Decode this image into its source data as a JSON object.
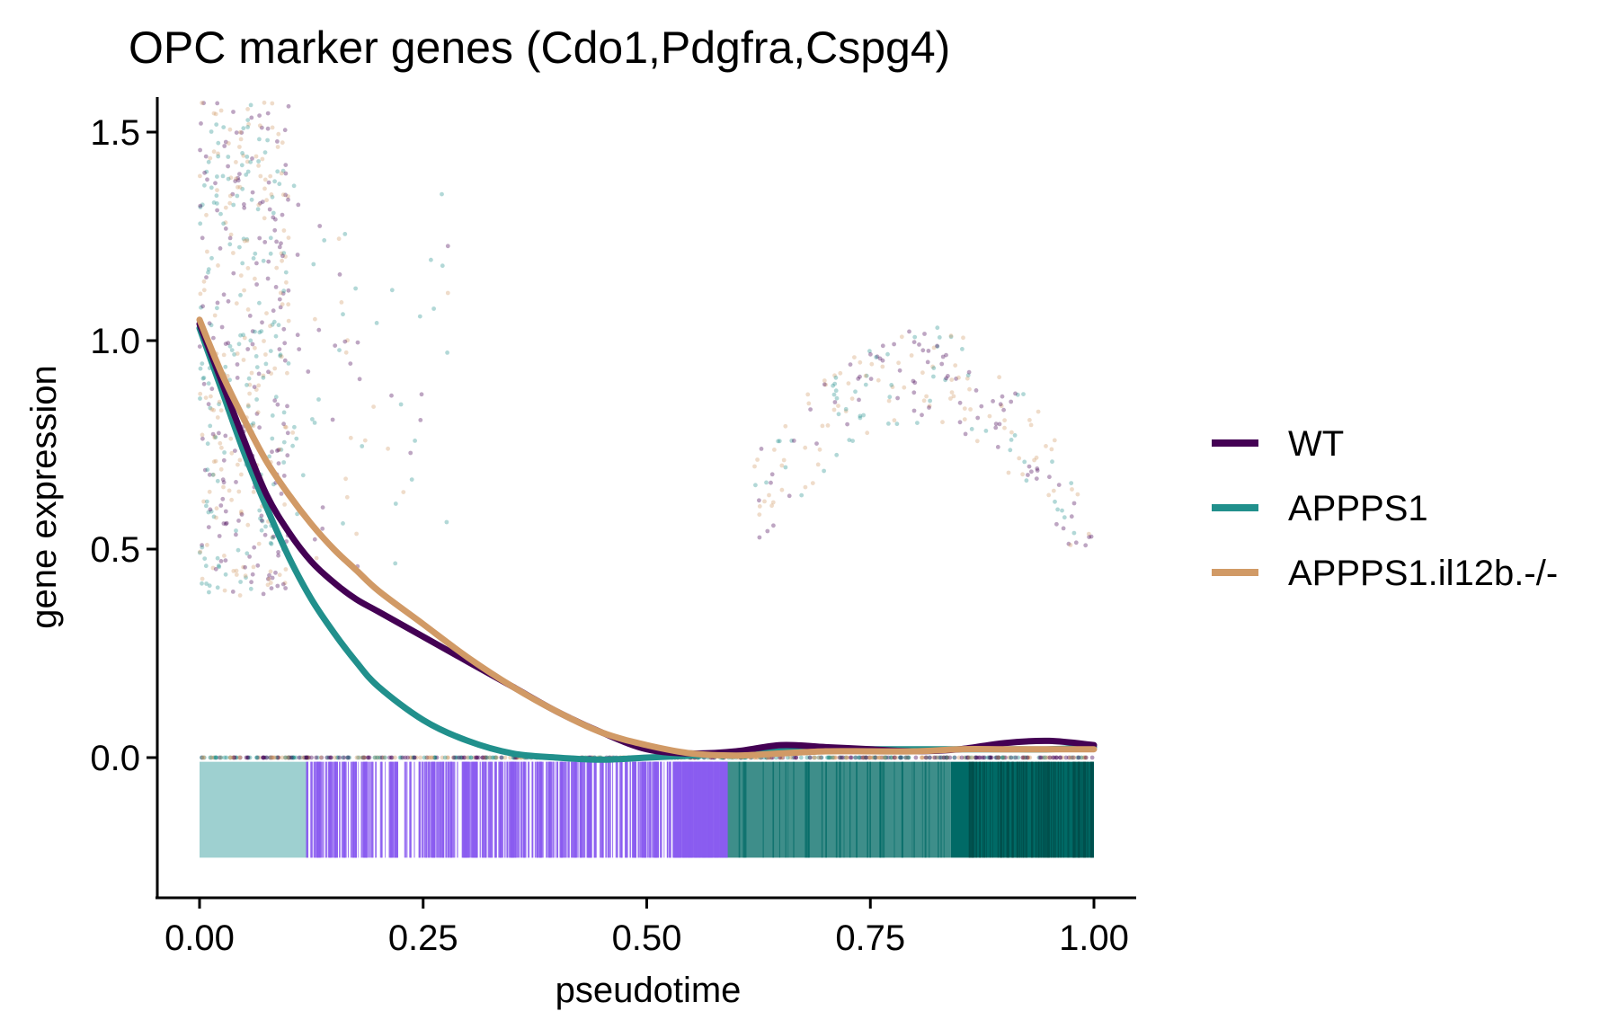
{
  "chart_data": {
    "type": "line",
    "title": "OPC marker genes (Cdo1,Pdgfra,Cspg4)",
    "xlabel": "pseudotime",
    "ylabel": "gene expression",
    "xlim": [
      -0.05,
      1.05
    ],
    "ylim": [
      -0.33,
      1.58
    ],
    "x_ticks": [
      "0.00",
      "0.25",
      "0.50",
      "0.75",
      "1.00"
    ],
    "y_ticks": [
      "0.0",
      "0.5",
      "1.0",
      "1.5"
    ],
    "x_tick_values": [
      0,
      0.25,
      0.5,
      0.75,
      1.0
    ],
    "y_tick_values": [
      0,
      0.5,
      1.0,
      1.5
    ],
    "grid": false,
    "legend_position": "right",
    "series": [
      {
        "name": "WT",
        "color": "#440154",
        "x": [
          0.0,
          0.025,
          0.05,
          0.075,
          0.1,
          0.125,
          0.15,
          0.175,
          0.2,
          0.25,
          0.3,
          0.35,
          0.4,
          0.45,
          0.5,
          0.55,
          0.6,
          0.65,
          0.7,
          0.75,
          0.8,
          0.85,
          0.9,
          0.95,
          1.0
        ],
        "values": [
          1.04,
          0.9,
          0.76,
          0.63,
          0.54,
          0.47,
          0.42,
          0.38,
          0.35,
          0.29,
          0.23,
          0.17,
          0.11,
          0.06,
          0.02,
          0.01,
          0.015,
          0.03,
          0.025,
          0.02,
          0.015,
          0.02,
          0.035,
          0.04,
          0.03
        ]
      },
      {
        "name": "APPPS1",
        "color": "#21908C",
        "x": [
          0.0,
          0.025,
          0.05,
          0.075,
          0.1,
          0.125,
          0.15,
          0.175,
          0.2,
          0.25,
          0.3,
          0.35,
          0.4,
          0.45,
          0.5,
          0.55,
          0.6,
          0.65,
          0.7,
          0.75,
          0.8,
          0.85,
          0.9,
          0.95,
          1.0
        ],
        "values": [
          1.03,
          0.88,
          0.73,
          0.6,
          0.48,
          0.38,
          0.3,
          0.23,
          0.17,
          0.09,
          0.04,
          0.01,
          0.0,
          -0.005,
          0.0,
          0.005,
          0.01,
          0.015,
          0.02,
          0.02,
          0.02,
          0.02,
          0.02,
          0.02,
          0.025
        ]
      },
      {
        "name": "APPPS1.il12b.-/-",
        "color": "#D19A66",
        "x": [
          0.0,
          0.025,
          0.05,
          0.075,
          0.1,
          0.125,
          0.15,
          0.175,
          0.2,
          0.25,
          0.3,
          0.35,
          0.4,
          0.45,
          0.5,
          0.55,
          0.6,
          0.65,
          0.7,
          0.75,
          0.8,
          0.85,
          0.9,
          0.95,
          1.0
        ],
        "values": [
          1.05,
          0.92,
          0.81,
          0.71,
          0.63,
          0.56,
          0.5,
          0.45,
          0.4,
          0.32,
          0.24,
          0.17,
          0.11,
          0.06,
          0.03,
          0.01,
          0.005,
          0.01,
          0.015,
          0.015,
          0.015,
          0.02,
          0.02,
          0.02,
          0.02
        ]
      }
    ],
    "scatter_clusters": [
      {
        "x_range": [
          0.0,
          0.1
        ],
        "y_range": [
          0.38,
          1.58
        ],
        "count": 520
      },
      {
        "x_range": [
          0.1,
          0.28
        ],
        "y_range": [
          0.45,
          1.45
        ],
        "count": 70
      },
      {
        "x_range": [
          0.62,
          1.0
        ],
        "y_range": [
          0.5,
          1.0
        ],
        "count": 230
      }
    ],
    "rug": {
      "y_range": [
        -0.24,
        -0.01
      ],
      "segments": [
        {
          "x_range": [
            0.0,
            0.12
          ],
          "color": "#9ED0D0"
        },
        {
          "x_range": [
            0.12,
            0.59
          ],
          "color": "#8A5CF0"
        },
        {
          "x_range": [
            0.59,
            0.84
          ],
          "color": "#3E8E8A"
        },
        {
          "x_range": [
            0.84,
            1.0
          ],
          "color": "#006A66"
        }
      ]
    }
  }
}
